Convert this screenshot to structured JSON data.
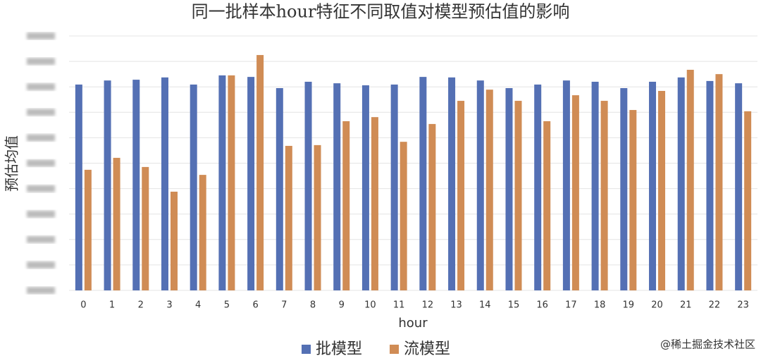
{
  "chart_data": {
    "type": "bar",
    "title": "同一批样本hour特征不同取值对模型预估值的影响",
    "x_label": "hour",
    "y_label": "预估均值",
    "categories": [
      "0",
      "1",
      "2",
      "3",
      "4",
      "5",
      "6",
      "7",
      "8",
      "9",
      "10",
      "11",
      "12",
      "13",
      "14",
      "15",
      "16",
      "17",
      "18",
      "19",
      "20",
      "21",
      "22",
      "23"
    ],
    "series": [
      {
        "name": "批模型",
        "color": "#5470b4",
        "values": [
          8.09,
          8.25,
          8.28,
          8.37,
          8.09,
          8.45,
          8.39,
          7.95,
          8.2,
          8.14,
          8.06,
          8.09,
          8.39,
          8.37,
          8.25,
          7.95,
          8.09,
          8.25,
          8.2,
          7.95,
          8.2,
          8.37,
          8.23,
          8.14
        ]
      },
      {
        "name": "流模型",
        "color": "#d08c55",
        "values": [
          4.74,
          5.21,
          4.85,
          3.88,
          4.54,
          8.45,
          9.25,
          5.68,
          5.71,
          6.65,
          6.81,
          5.84,
          6.54,
          7.45,
          7.89,
          7.45,
          6.65,
          7.67,
          7.45,
          7.09,
          7.84,
          8.67,
          8.5,
          7.04
        ]
      }
    ],
    "ylim": [
      0,
      10
    ],
    "yticks": [
      0,
      1,
      2,
      3,
      4,
      5,
      6,
      7,
      8,
      9,
      10
    ],
    "grid": true,
    "legend": "bottom",
    "watermark": "@稀土掘金技术社区"
  }
}
